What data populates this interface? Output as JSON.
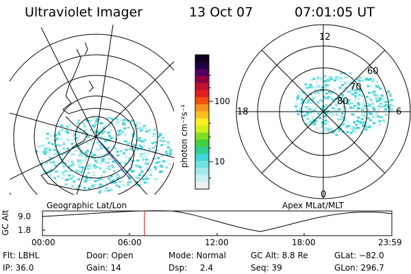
{
  "header": {
    "instrument": "Ultraviolet Imager",
    "date": "13 Oct 07",
    "time": "07:01:05 UT"
  },
  "colors": {
    "aurora_low": "#bfeef0",
    "aurora_mid": "#7fe0e3",
    "aurora_high": "#3fd4d8",
    "cursor": "#cc0000",
    "track": "#2222aa"
  },
  "left_panel": {
    "caption": "Geographic Lat/Lon"
  },
  "right_panel": {
    "caption": "Apex MLat/MLT",
    "mlt_top": "12",
    "mlt_left": "18",
    "mlt_right": "6",
    "mlt_bottom": "0",
    "lat_60": "60",
    "lat_70": "70",
    "lat_80": "80"
  },
  "colorbar": {
    "label": "photon cm⁻²s⁻¹",
    "tick_100": "100",
    "tick_10": "10",
    "colors": [
      "#f0f0f0",
      "#c8f0f0",
      "#a0ecec",
      "#70e0e0",
      "#40d4d8",
      "#30d090",
      "#40d040",
      "#80e020",
      "#d0f020",
      "#f8f020",
      "#f8c020",
      "#f89020",
      "#f05010",
      "#e02020",
      "#c01030",
      "#900040",
      "#500060",
      "#200040",
      "#100020"
    ]
  },
  "timeline": {
    "ylabel": "GC Alt",
    "y_top": "9.0",
    "y_bottom": "1.8",
    "ticks": [
      "00:00",
      "06:00",
      "12:00",
      "18:00",
      "23:59"
    ],
    "cursor_fraction": 0.292
  },
  "status": {
    "flt": "Flt: LBHL",
    "ip": "IP: 36.0",
    "door": "Door: Open",
    "gain": "Gain: 14",
    "mode": "Mode: Normal",
    "dsp_label": "Dsp:",
    "dsp_value": "2.4",
    "gc_alt": "GC Alt: 8.8 Re",
    "seq": "Seq: 39",
    "glat": "GLat: −82.0",
    "glon": "GLon: 296.7"
  }
}
